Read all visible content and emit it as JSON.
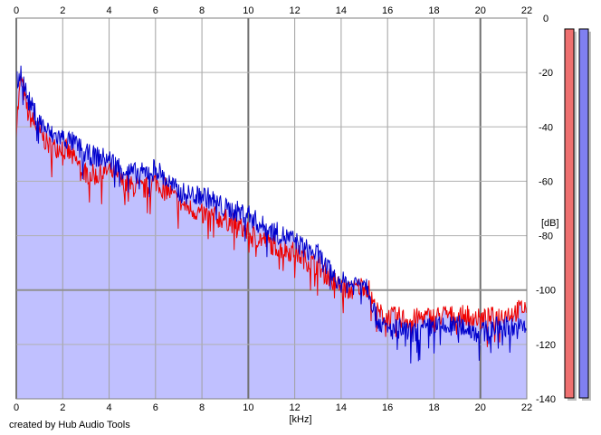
{
  "chart_data": {
    "type": "line",
    "title": "",
    "xlabel": "[kHz]",
    "ylabel": "[dB]",
    "xlim": [
      0,
      22
    ],
    "ylim": [
      -140,
      0
    ],
    "x_ticks": [
      0,
      2,
      4,
      6,
      8,
      10,
      12,
      14,
      16,
      18,
      20,
      22
    ],
    "y_ticks": [
      0,
      -20,
      -40,
      -60,
      -80,
      -100,
      -120,
      -140
    ],
    "grid": true,
    "fill_color": "#c0c0ff",
    "series": [
      {
        "color": "#ee0000",
        "x": [
          0,
          0.2,
          0.5,
          1,
          1.5,
          2,
          2.5,
          3,
          3.5,
          4,
          4.5,
          5,
          5.5,
          6,
          6.5,
          7,
          7.5,
          8,
          8.5,
          9,
          9.5,
          10,
          10.5,
          11,
          11.5,
          12,
          12.5,
          13,
          13.5,
          14,
          14.5,
          15,
          15.2,
          15.5,
          16,
          16.5,
          17,
          17.5,
          18,
          18.5,
          19,
          19.5,
          20,
          20.5,
          21,
          21.5,
          22
        ],
        "values": [
          -40,
          -22,
          -35,
          -42,
          -48,
          -47,
          -52,
          -57,
          -58,
          -56,
          -60,
          -62,
          -63,
          -60,
          -63,
          -68,
          -70,
          -72,
          -73,
          -74,
          -76,
          -79,
          -81,
          -83,
          -85,
          -86,
          -89,
          -91,
          -95,
          -99,
          -100,
          -98,
          -100,
          -108,
          -110,
          -110,
          -111,
          -110,
          -110,
          -109,
          -110,
          -109,
          -111,
          -110,
          -109,
          -108,
          -106
        ]
      },
      {
        "color": "#0000cc",
        "x": [
          0,
          0.2,
          0.5,
          1,
          1.5,
          2,
          2.5,
          3,
          3.5,
          4,
          4.5,
          5,
          5.5,
          6,
          6.5,
          7,
          7.5,
          8,
          8.5,
          9,
          9.5,
          10,
          10.5,
          11,
          11.5,
          12,
          12.5,
          13,
          13.5,
          14,
          14.5,
          15,
          15.2,
          15.5,
          16,
          16.5,
          17,
          17.5,
          18,
          18.5,
          19,
          19.5,
          20,
          20.5,
          21,
          21.5,
          22
        ],
        "values": [
          -24,
          -20,
          -30,
          -38,
          -43,
          -44,
          -46,
          -50,
          -51,
          -52,
          -55,
          -57,
          -57,
          -55,
          -60,
          -64,
          -65,
          -65,
          -67,
          -70,
          -71,
          -72,
          -76,
          -78,
          -80,
          -82,
          -85,
          -87,
          -93,
          -97,
          -98,
          -96,
          -100,
          -110,
          -115,
          -114,
          -116,
          -115,
          -113,
          -114,
          -113,
          -114,
          -116,
          -114,
          -113,
          -114,
          -114
        ]
      }
    ],
    "meters": [
      {
        "color": "#ee7070",
        "level": 1.0
      },
      {
        "color": "#8080f0",
        "level": 1.0
      }
    ]
  },
  "footer": {
    "credit": "created by Hub Audio Tools"
  }
}
